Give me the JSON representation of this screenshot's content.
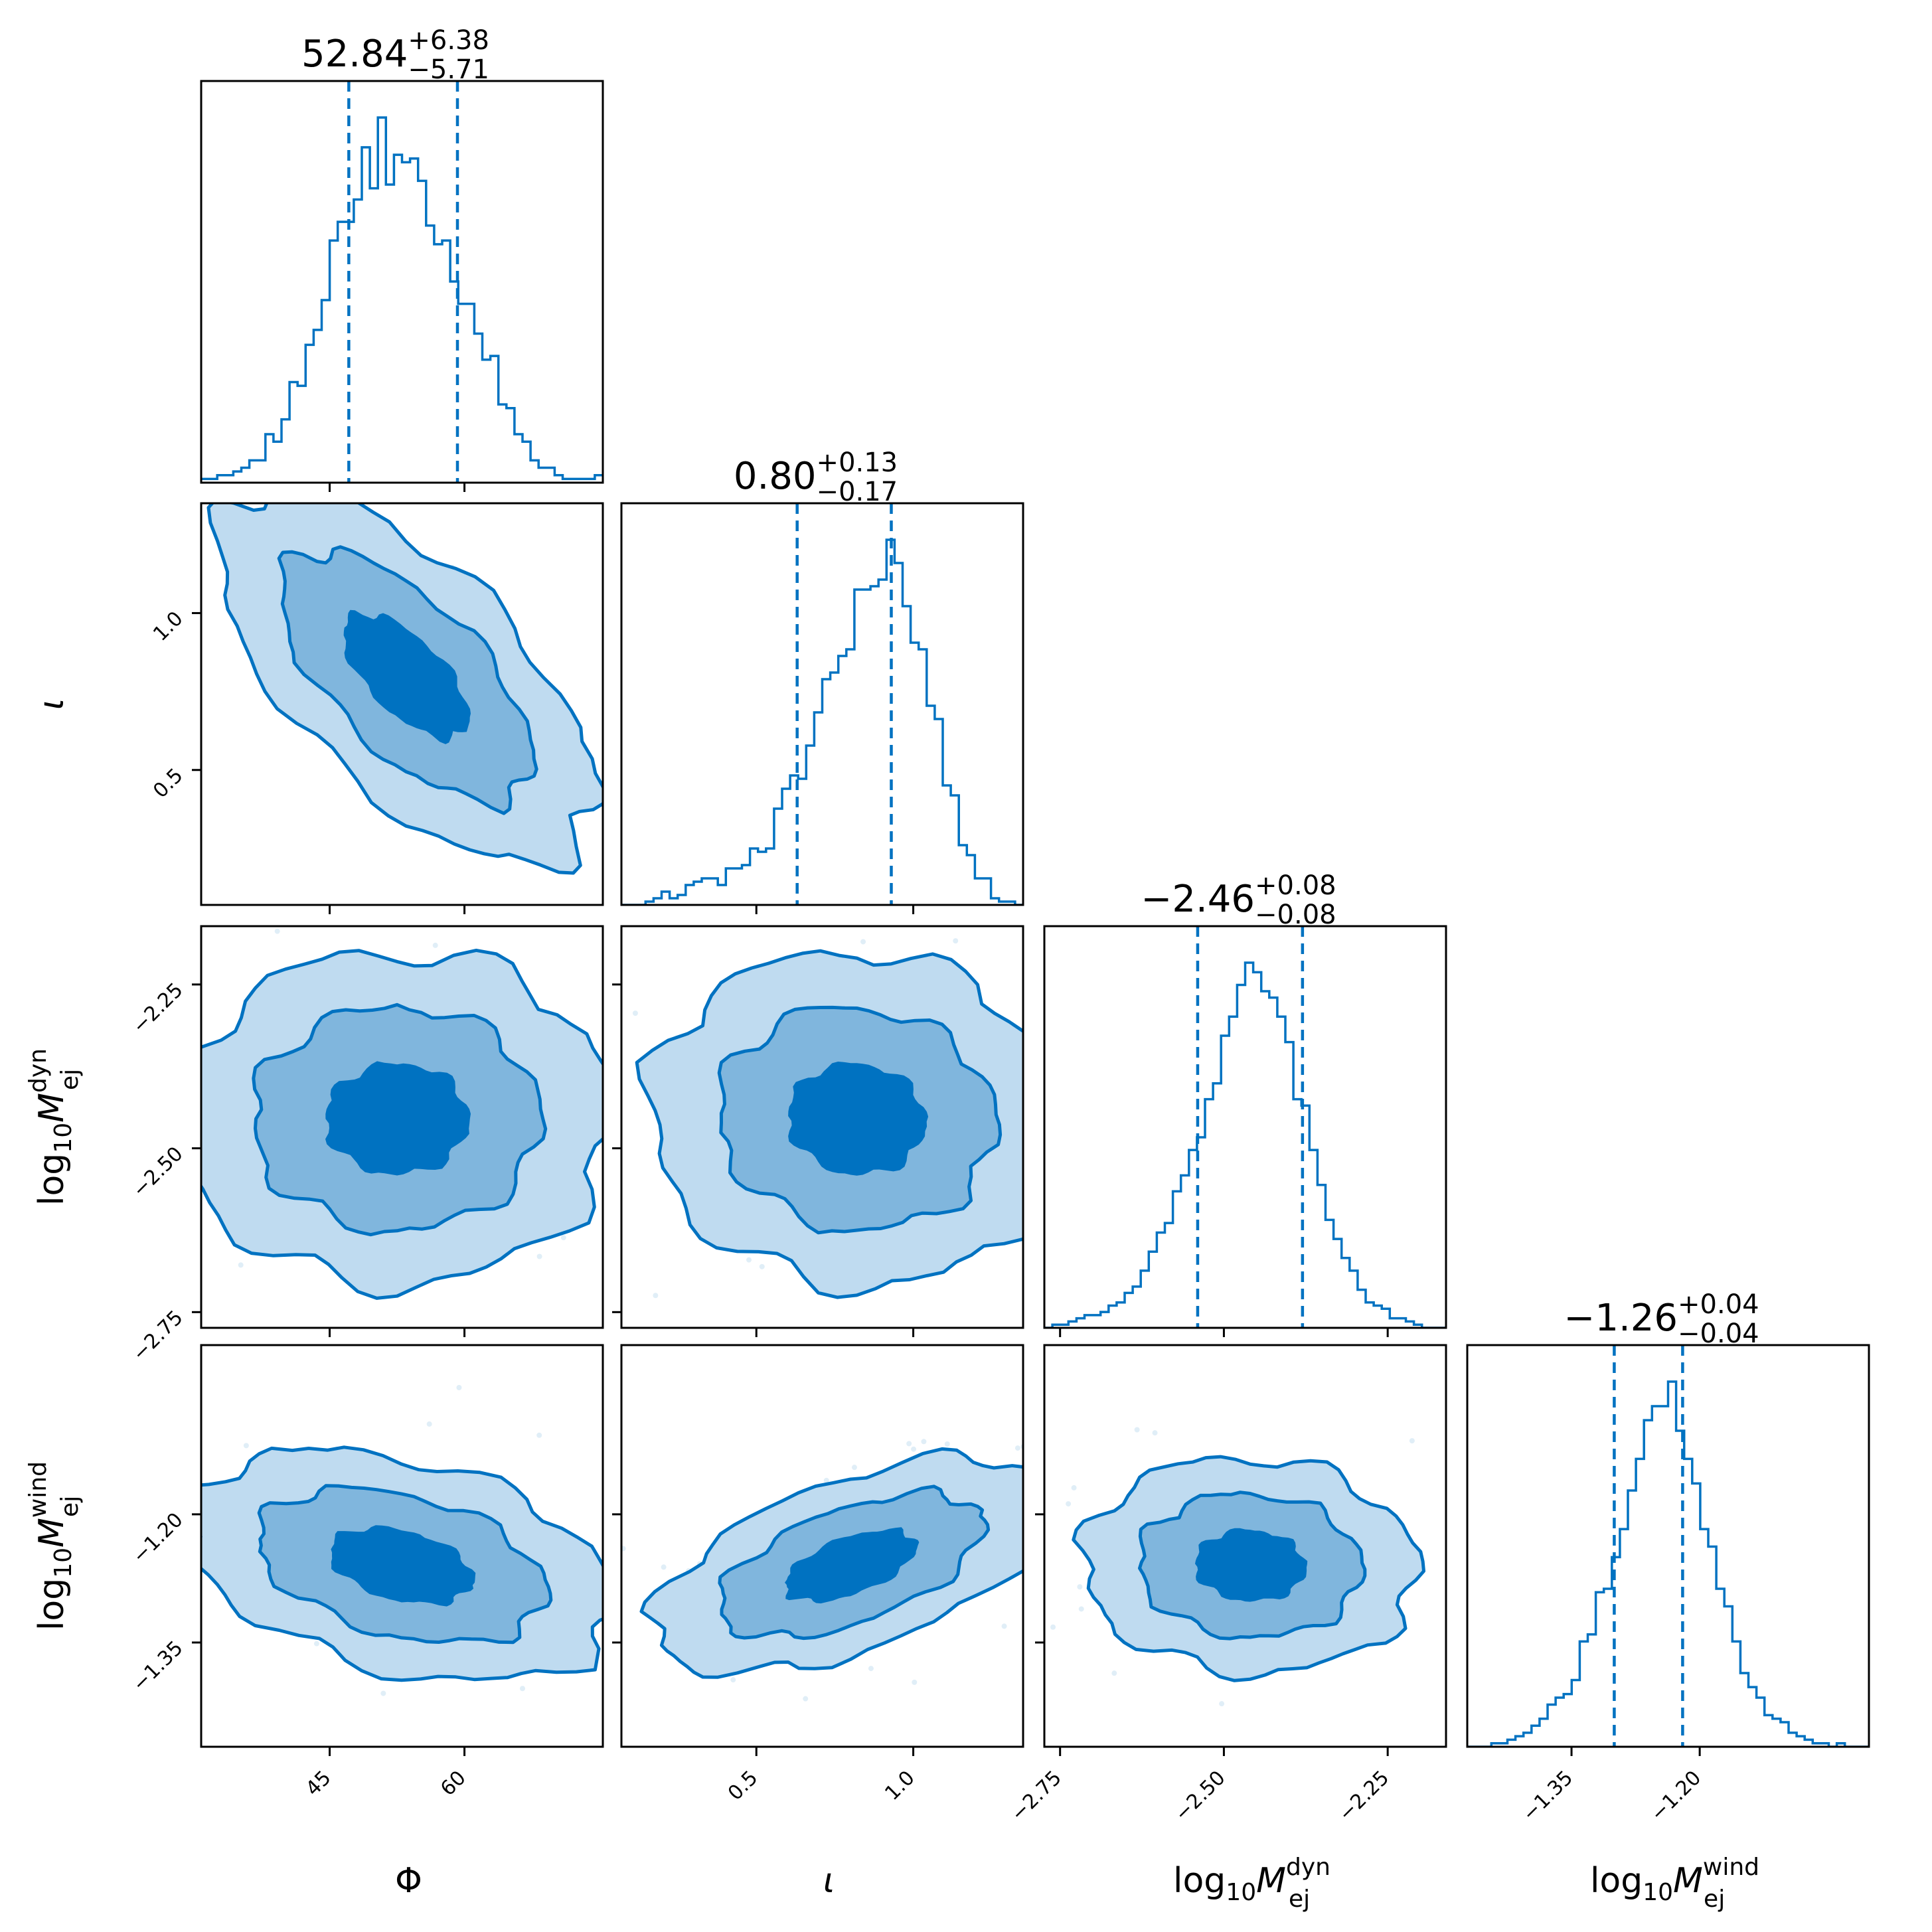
{
  "chart_data": {
    "type": "corner",
    "color": "#0072C1",
    "fill_levels": [
      "#BFDBF0",
      "#80B6DD",
      "#0072C1"
    ],
    "contour_levels_sigma": [
      0.5,
      1.0,
      1.5
    ],
    "parameters": [
      {
        "key": "phi",
        "label": "Φ",
        "label_parts": {
          "main": "Φ",
          "sub": "",
          "sup": ""
        },
        "range": [
          30.7,
          75.4
        ],
        "ticks": [
          45,
          60
        ],
        "tick_labels": [
          "45",
          "60"
        ],
        "median": 52.84,
        "err_plus": 6.38,
        "err_minus": 5.71,
        "title": {
          "value": "52.84",
          "plus": "+6.38",
          "minus": "−5.71"
        },
        "quantiles": [
          47.13,
          59.22
        ],
        "hist_counts": [
          1,
          1,
          2,
          2,
          3,
          4,
          6,
          6,
          13,
          11,
          17,
          27,
          26,
          37,
          41,
          49,
          65,
          70,
          70,
          76,
          90,
          79,
          98,
          80,
          88,
          86,
          87,
          81,
          69,
          64,
          65,
          54,
          48,
          48,
          40,
          33,
          34,
          21,
          20,
          13,
          11,
          6,
          4,
          4,
          2,
          1,
          1,
          1,
          1,
          2
        ]
      },
      {
        "key": "iota",
        "label": "ι",
        "label_parts": {
          "main": "ι",
          "sub": "",
          "sup": ""
        },
        "range": [
          0.07,
          1.35
        ],
        "ticks": [
          0.5,
          1.0
        ],
        "tick_labels": [
          "0.5",
          "1.0"
        ],
        "median": 0.8,
        "err_plus": 0.13,
        "err_minus": 0.17,
        "title": {
          "value": "0.80",
          "plus": "+0.13",
          "minus": "−0.17"
        },
        "quantiles": [
          0.63,
          0.93
        ],
        "hist_counts": [
          0,
          0,
          0,
          1,
          2,
          4,
          2,
          3,
          6,
          7,
          8,
          8,
          6,
          11,
          11,
          12,
          17,
          16,
          17,
          29,
          35,
          39,
          38,
          48,
          58,
          68,
          70,
          75,
          77,
          95,
          95,
          96,
          98,
          110,
          103,
          90,
          79,
          77,
          60,
          56,
          36,
          33,
          18,
          15,
          8,
          8,
          2,
          1,
          1,
          0
        ]
      },
      {
        "key": "mdyn",
        "label": "log10 M_ej^dyn",
        "label_parts": {
          "main": "log",
          "sub": "10",
          "italic": "M",
          "sub2": "ej",
          "sup": "dyn"
        },
        "range": [
          -2.774,
          -2.161
        ],
        "ticks": [
          -2.75,
          -2.5,
          -2.25
        ],
        "tick_labels": [
          "−2.75",
          "−2.50",
          "−2.25"
        ],
        "median": -2.46,
        "err_plus": 0.08,
        "err_minus": 0.08,
        "title": {
          "value": "−2.46",
          "plus": "+0.08",
          "minus": "−0.08"
        },
        "quantiles": [
          -2.54,
          -2.38
        ],
        "hist_counts": [
          0,
          1,
          1,
          2,
          3,
          4,
          4,
          5,
          7,
          8,
          11,
          13,
          18,
          24,
          30,
          33,
          43,
          48,
          56,
          60,
          72,
          77,
          92,
          98,
          108,
          115,
          112,
          106,
          104,
          98,
          90,
          72,
          70,
          56,
          45,
          34,
          28,
          22,
          18,
          12,
          8,
          7,
          6,
          3,
          3,
          2,
          1,
          0,
          0,
          0
        ]
      },
      {
        "key": "mwind",
        "label": "log10 M_ej^wind",
        "label_parts": {
          "main": "log",
          "sub": "10",
          "italic": "M",
          "sub2": "ej",
          "sup": "wind"
        },
        "range": [
          -1.472,
          -1.002
        ],
        "ticks": [
          -1.35,
          -1.2
        ],
        "tick_labels": [
          "−1.35",
          "−1.20"
        ],
        "median": -1.26,
        "err_plus": 0.04,
        "err_minus": 0.04,
        "title": {
          "value": "−1.26",
          "plus": "+0.04",
          "minus": "−0.04"
        },
        "quantiles": [
          -1.3,
          -1.22
        ],
        "hist_counts": [
          0,
          0,
          0,
          1,
          1,
          2,
          3,
          4,
          6,
          8,
          12,
          14,
          15,
          19,
          30,
          32,
          44,
          45,
          54,
          62,
          73,
          82,
          93,
          97,
          97,
          104,
          90,
          82,
          75,
          62,
          57,
          45,
          40,
          30,
          21,
          17,
          14,
          9,
          8,
          7,
          4,
          3,
          2,
          1,
          1,
          0,
          1,
          0,
          0,
          0
        ]
      }
    ],
    "pairs": [
      {
        "x": "phi",
        "y": "iota",
        "mean": [
          53.5,
          0.8
        ],
        "sigma": [
          7.0,
          0.2
        ],
        "rho": -0.65
      },
      {
        "x": "phi",
        "y": "mdyn",
        "mean": [
          52.5,
          -2.455
        ],
        "sigma": [
          8.0,
          0.085
        ],
        "rho": 0.0
      },
      {
        "x": "iota",
        "y": "mdyn",
        "mean": [
          0.82,
          -2.455
        ],
        "sigma": [
          0.22,
          0.085
        ],
        "rho": -0.05
      },
      {
        "x": "phi",
        "y": "mwind",
        "mean": [
          53.0,
          -1.26
        ],
        "sigma": [
          8.0,
          0.045
        ],
        "rho": -0.35
      },
      {
        "x": "iota",
        "y": "mwind",
        "mean": [
          0.8,
          -1.26
        ],
        "sigma": [
          0.21,
          0.042
        ],
        "rho": 0.55
      },
      {
        "x": "mdyn",
        "y": "mwind",
        "mean": [
          -2.46,
          -1.26
        ],
        "sigma": [
          0.085,
          0.042
        ],
        "rho": -0.05
      }
    ]
  }
}
